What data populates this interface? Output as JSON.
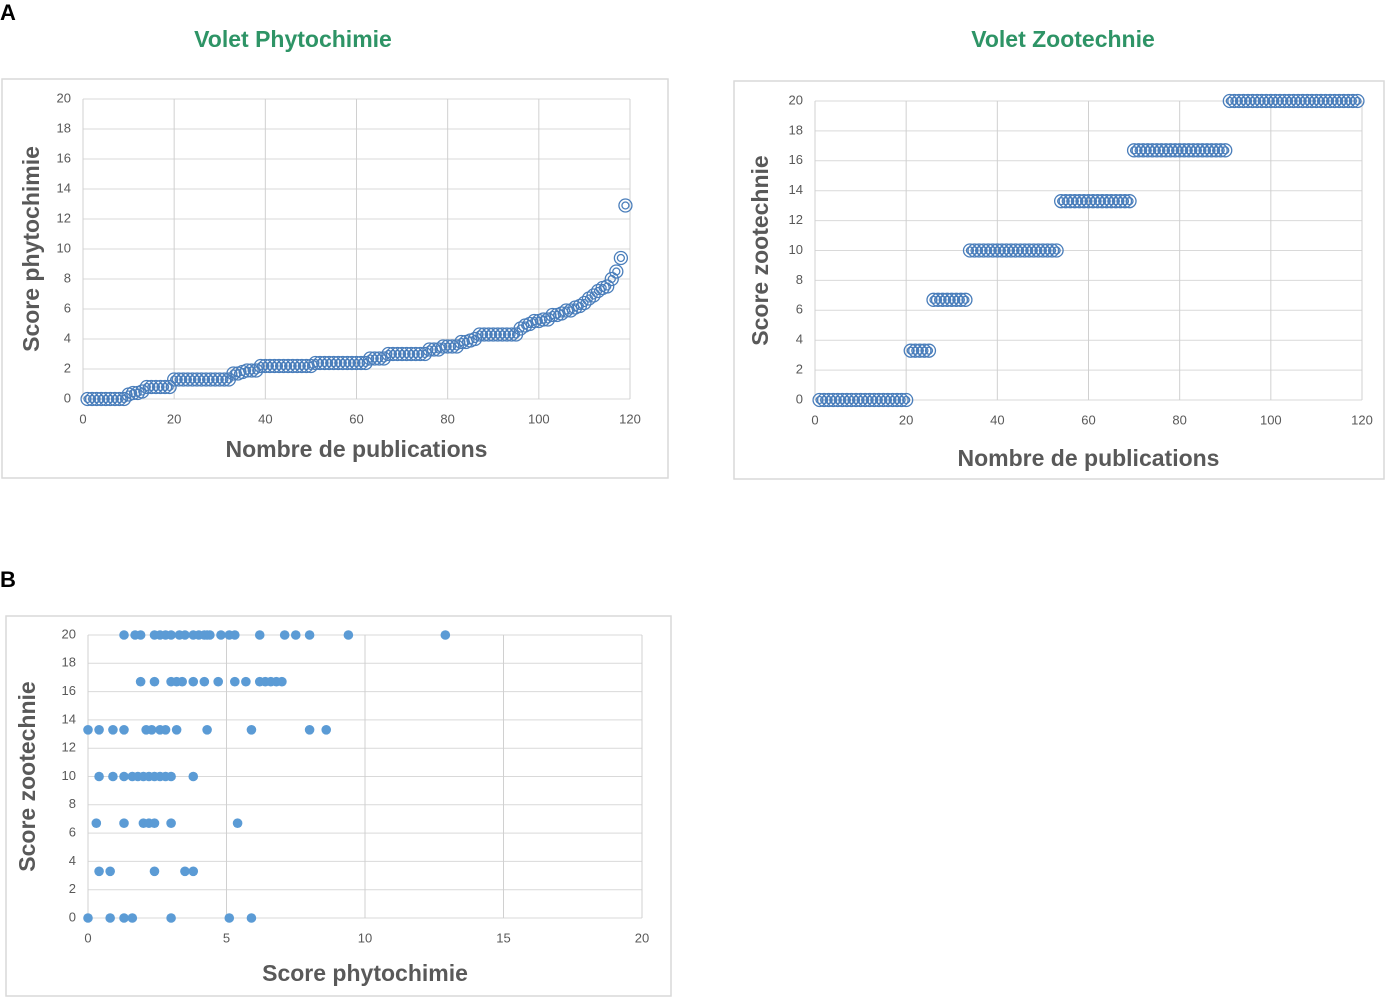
{
  "panels": [
    "A",
    "B"
  ],
  "chart_data": [
    {
      "type": "scatter",
      "title": "Volet Phytochimie",
      "x_label": "Nombre de publications",
      "y_label": "Score phytochimie",
      "marker": "circle-open",
      "color": "#4a7ebb",
      "x": [
        1,
        2,
        3,
        4,
        5,
        6,
        7,
        8,
        9,
        10,
        11,
        12,
        13,
        14,
        15,
        16,
        17,
        18,
        19,
        20,
        21,
        22,
        23,
        24,
        25,
        26,
        27,
        28,
        29,
        30,
        31,
        32,
        33,
        34,
        35,
        36,
        37,
        38,
        39,
        40,
        41,
        42,
        43,
        44,
        45,
        46,
        47,
        48,
        49,
        50,
        51,
        52,
        53,
        54,
        55,
        56,
        57,
        58,
        59,
        60,
        61,
        62,
        63,
        64,
        65,
        66,
        67,
        68,
        69,
        70,
        71,
        72,
        73,
        74,
        75,
        76,
        77,
        78,
        79,
        80,
        81,
        82,
        83,
        84,
        85,
        86,
        87,
        88,
        89,
        90,
        91,
        92,
        93,
        94,
        95,
        96,
        97,
        98,
        99,
        100,
        101,
        102,
        103,
        104,
        105,
        106,
        107,
        108,
        109,
        110,
        111,
        112,
        113,
        114,
        115,
        116,
        117,
        118,
        119
      ],
      "values": [
        0,
        0,
        0,
        0,
        0,
        0,
        0,
        0,
        0,
        0.3,
        0.4,
        0.4,
        0.5,
        0.8,
        0.8,
        0.8,
        0.8,
        0.8,
        0.8,
        1.3,
        1.3,
        1.3,
        1.3,
        1.3,
        1.3,
        1.3,
        1.3,
        1.3,
        1.3,
        1.3,
        1.3,
        1.3,
        1.7,
        1.7,
        1.8,
        1.9,
        1.9,
        1.9,
        2.2,
        2.2,
        2.2,
        2.2,
        2.2,
        2.2,
        2.2,
        2.2,
        2.2,
        2.2,
        2.2,
        2.2,
        2.4,
        2.4,
        2.4,
        2.4,
        2.4,
        2.4,
        2.4,
        2.4,
        2.4,
        2.4,
        2.4,
        2.4,
        2.7,
        2.7,
        2.7,
        2.7,
        3.0,
        3.0,
        3.0,
        3.0,
        3.0,
        3.0,
        3.0,
        3.0,
        3.0,
        3.3,
        3.3,
        3.3,
        3.5,
        3.5,
        3.5,
        3.5,
        3.8,
        3.8,
        3.9,
        4.0,
        4.3,
        4.3,
        4.3,
        4.3,
        4.3,
        4.3,
        4.3,
        4.3,
        4.3,
        4.7,
        4.9,
        5.0,
        5.2,
        5.2,
        5.3,
        5.3,
        5.6,
        5.6,
        5.7,
        5.9,
        5.9,
        6.1,
        6.2,
        6.4,
        6.7,
        6.9,
        7.2,
        7.4,
        7.5,
        8.0,
        8.5,
        9.4,
        12.9
      ],
      "xlim": [
        0,
        120
      ],
      "xticks": [
        0,
        20,
        40,
        60,
        80,
        100,
        120
      ],
      "ylim": [
        0,
        20
      ],
      "yticks": [
        0,
        2,
        4,
        6,
        8,
        10,
        12,
        14,
        16,
        18,
        20
      ],
      "grid": true
    },
    {
      "type": "scatter",
      "title": "Volet Zootechnie",
      "x_label": "Nombre de publications",
      "y_label": "Score zootechnie",
      "marker": "circle-open",
      "color": "#4a7ebb",
      "x": [
        1,
        2,
        3,
        4,
        5,
        6,
        7,
        8,
        9,
        10,
        11,
        12,
        13,
        14,
        15,
        16,
        17,
        18,
        19,
        20,
        21,
        22,
        23,
        24,
        25,
        26,
        27,
        28,
        29,
        30,
        31,
        32,
        33,
        34,
        35,
        36,
        37,
        38,
        39,
        40,
        41,
        42,
        43,
        44,
        45,
        46,
        47,
        48,
        49,
        50,
        51,
        52,
        53,
        54,
        55,
        56,
        57,
        58,
        59,
        60,
        61,
        62,
        63,
        64,
        65,
        66,
        67,
        68,
        69,
        70,
        71,
        72,
        73,
        74,
        75,
        76,
        77,
        78,
        79,
        80,
        81,
        82,
        83,
        84,
        85,
        86,
        87,
        88,
        89,
        90,
        91,
        92,
        93,
        94,
        95,
        96,
        97,
        98,
        99,
        100,
        101,
        102,
        103,
        104,
        105,
        106,
        107,
        108,
        109,
        110,
        111,
        112,
        113,
        114,
        115,
        116,
        117,
        118,
        119
      ],
      "values": [
        0,
        0,
        0,
        0,
        0,
        0,
        0,
        0,
        0,
        0,
        0,
        0,
        0,
        0,
        0,
        0,
        0,
        0,
        0,
        0,
        3.3,
        3.3,
        3.3,
        3.3,
        3.3,
        6.7,
        6.7,
        6.7,
        6.7,
        6.7,
        6.7,
        6.7,
        6.7,
        10,
        10,
        10,
        10,
        10,
        10,
        10,
        10,
        10,
        10,
        10,
        10,
        10,
        10,
        10,
        10,
        10,
        10,
        10,
        10,
        13.3,
        13.3,
        13.3,
        13.3,
        13.3,
        13.3,
        13.3,
        13.3,
        13.3,
        13.3,
        13.3,
        13.3,
        13.3,
        13.3,
        13.3,
        13.3,
        16.7,
        16.7,
        16.7,
        16.7,
        16.7,
        16.7,
        16.7,
        16.7,
        16.7,
        16.7,
        16.7,
        16.7,
        16.7,
        16.7,
        16.7,
        16.7,
        16.7,
        16.7,
        16.7,
        16.7,
        16.7,
        20,
        20,
        20,
        20,
        20,
        20,
        20,
        20,
        20,
        20,
        20,
        20,
        20,
        20,
        20,
        20,
        20,
        20,
        20,
        20,
        20,
        20,
        20,
        20,
        20,
        20,
        20,
        20,
        20
      ],
      "xlim": [
        0,
        120
      ],
      "xticks": [
        0,
        20,
        40,
        60,
        80,
        100,
        120
      ],
      "ylim": [
        0,
        20
      ],
      "yticks": [
        0,
        2,
        4,
        6,
        8,
        10,
        12,
        14,
        16,
        18,
        20
      ],
      "grid": true
    },
    {
      "type": "scatter",
      "x_label": "Score phytochimie",
      "y_label": "Score zootechnie",
      "marker": "circle",
      "color": "#5b9bd5",
      "x": [
        1.3,
        1.7,
        1.9,
        2.4,
        2.6,
        2.8,
        3.0,
        3.3,
        3.5,
        3.8,
        4.0,
        4.2,
        4.3,
        4.4,
        4.8,
        5.1,
        5.3,
        6.2,
        7.1,
        7.5,
        8.0,
        9.4,
        12.9,
        1.9,
        2.4,
        3.0,
        3.2,
        3.4,
        3.8,
        4.2,
        4.7,
        5.3,
        5.7,
        6.2,
        6.4,
        6.6,
        6.8,
        7.0,
        0.0,
        0.4,
        0.9,
        1.3,
        2.1,
        2.3,
        2.6,
        2.8,
        3.2,
        4.3,
        5.9,
        8.0,
        8.6,
        0.4,
        0.9,
        1.3,
        1.6,
        1.8,
        2.0,
        2.2,
        2.4,
        2.6,
        2.8,
        3.0,
        3.8,
        0.3,
        1.3,
        2.0,
        2.2,
        2.4,
        3.0,
        5.4,
        0.4,
        0.8,
        2.4,
        3.5,
        3.8,
        0.0,
        0.8,
        1.3,
        1.6,
        3.0,
        5.1,
        5.9
      ],
      "values": [
        20,
        20,
        20,
        20,
        20,
        20,
        20,
        20,
        20,
        20,
        20,
        20,
        20,
        20,
        20,
        20,
        20,
        20,
        20,
        20,
        20,
        20,
        20,
        16.7,
        16.7,
        16.7,
        16.7,
        16.7,
        16.7,
        16.7,
        16.7,
        16.7,
        16.7,
        16.7,
        16.7,
        16.7,
        16.7,
        16.7,
        13.3,
        13.3,
        13.3,
        13.3,
        13.3,
        13.3,
        13.3,
        13.3,
        13.3,
        13.3,
        13.3,
        13.3,
        13.3,
        10,
        10,
        10,
        10,
        10,
        10,
        10,
        10,
        10,
        10,
        10,
        10,
        6.7,
        6.7,
        6.7,
        6.7,
        6.7,
        6.7,
        6.7,
        3.3,
        3.3,
        3.3,
        3.3,
        3.3,
        0,
        0,
        0,
        0,
        0,
        0,
        0
      ],
      "xlim": [
        0,
        20
      ],
      "xticks": [
        0,
        5,
        10,
        15,
        20
      ],
      "ylim": [
        0,
        20
      ],
      "yticks": [
        0,
        2,
        4,
        6,
        8,
        10,
        12,
        14,
        16,
        18,
        20
      ],
      "grid": true
    }
  ]
}
